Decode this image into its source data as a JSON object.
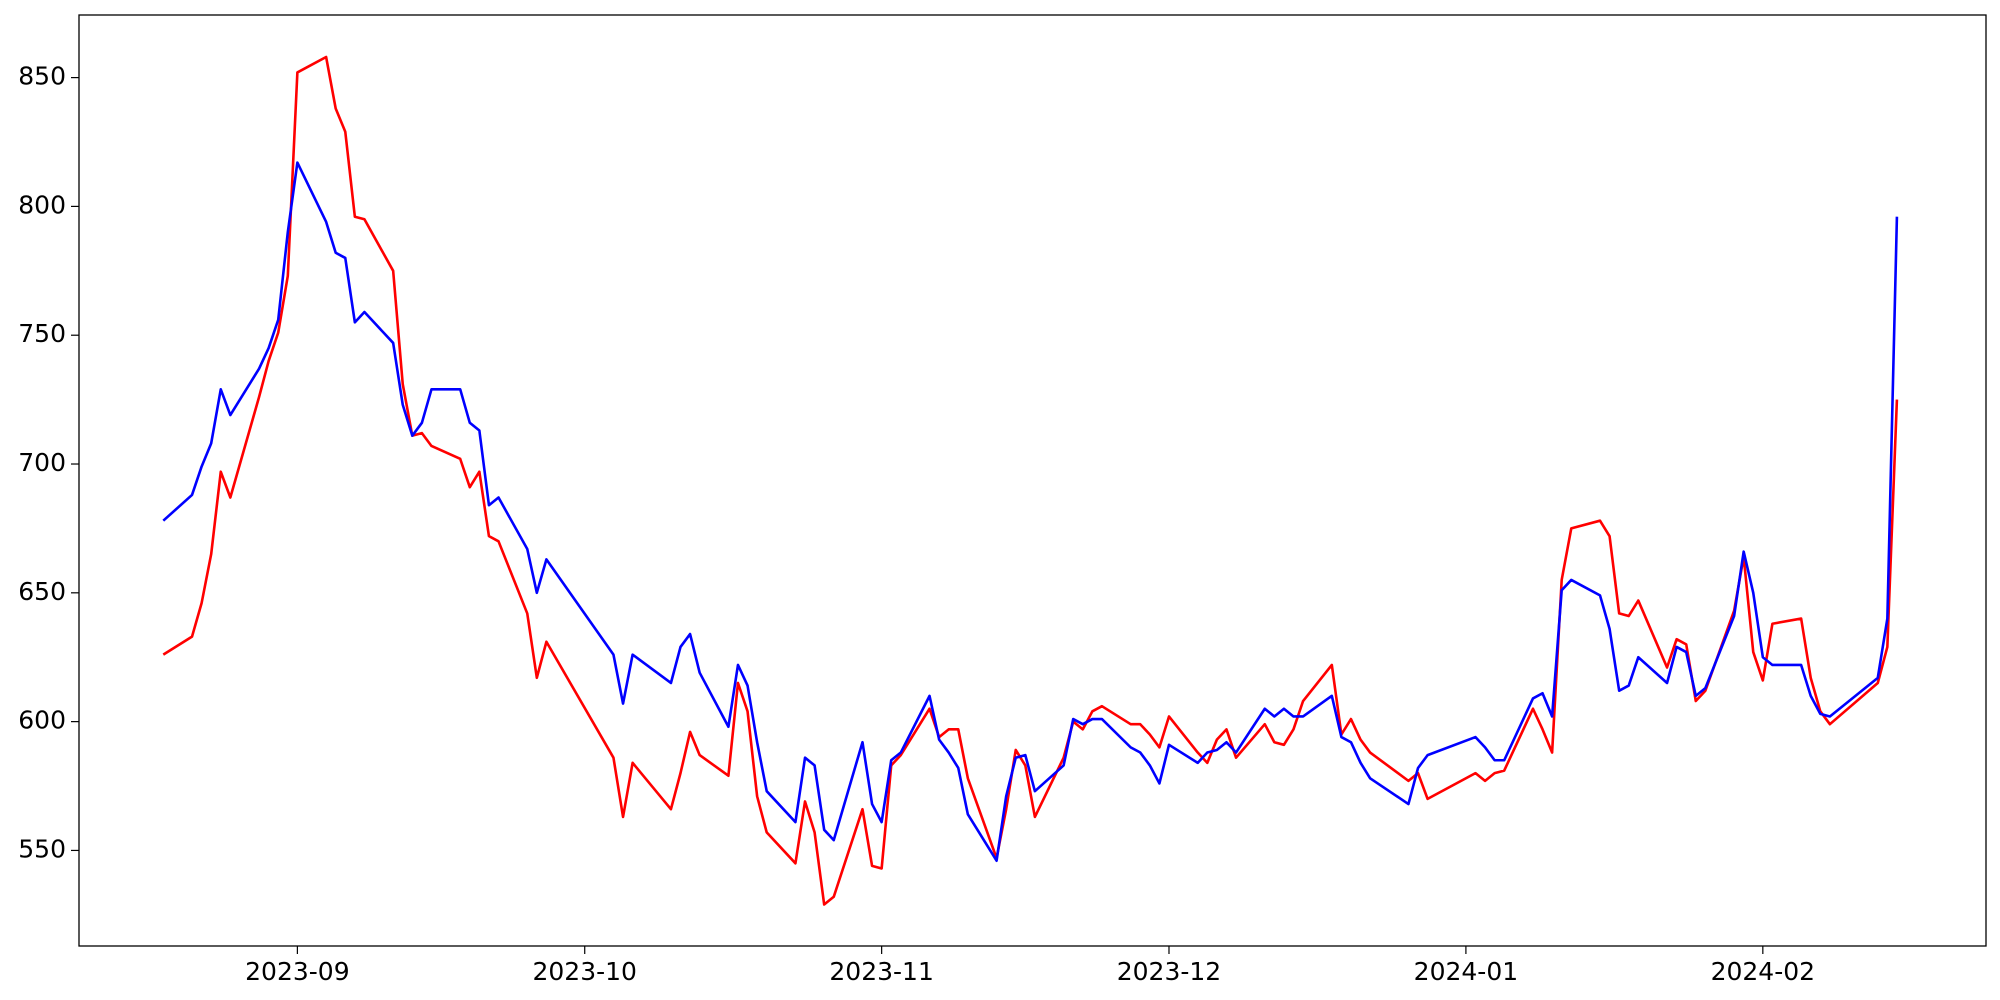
{
  "chart_data": {
    "type": "line",
    "x": [
      19587,
      19590,
      19591,
      19592,
      19593,
      19594,
      19597,
      19598,
      19599,
      19600,
      19601,
      19604,
      19605,
      19606,
      19607,
      19608,
      19611,
      19612,
      19613,
      19614,
      19615,
      19618,
      19619,
      19620,
      19621,
      19622,
      19625,
      19626,
      19627,
      19634,
      19635,
      19636,
      19640,
      19641,
      19642,
      19643,
      19646,
      19647,
      19648,
      19649,
      19650,
      19653,
      19654,
      19655,
      19656,
      19657,
      19660,
      19661,
      19662,
      19663,
      19664,
      19667,
      19668,
      19669,
      19670,
      19671,
      19674,
      19675,
      19676,
      19677,
      19678,
      19681,
      19682,
      19683,
      19684,
      19685,
      19688,
      19689,
      19690,
      19691,
      19692,
      19695,
      19696,
      19697,
      19698,
      19699,
      19702,
      19703,
      19704,
      19705,
      19706,
      19709,
      19710,
      19711,
      19712,
      19713,
      19717,
      19718,
      19719,
      19724,
      19725,
      19726,
      19727,
      19730,
      19731,
      19732,
      19733,
      19734,
      19737,
      19738,
      19739,
      19740,
      19741,
      19744,
      19745,
      19746,
      19747,
      19748,
      19751,
      19752,
      19753,
      19754,
      19755,
      19758,
      19759,
      19760,
      19761,
      19766,
      19767,
      19768
    ],
    "series": [
      {
        "color": "#ff0000",
        "values": [
          626,
          633,
          646,
          665,
          697,
          687,
          726,
          740,
          751,
          773,
          852,
          858,
          838,
          829,
          796,
          795,
          775,
          731,
          711,
          712,
          707,
          702,
          691,
          697,
          672,
          670,
          642,
          617,
          631,
          586,
          563,
          584,
          566,
          580,
          596,
          587,
          579,
          615,
          604,
          571,
          557,
          545,
          569,
          557,
          529,
          532,
          566,
          544,
          543,
          583,
          587,
          605,
          594,
          597,
          597,
          578,
          547,
          566,
          589,
          583,
          563,
          586,
          600,
          597,
          604,
          606,
          599,
          599,
          595,
          590,
          602,
          588,
          584,
          593,
          597,
          586,
          599,
          592,
          591,
          597,
          608,
          622,
          595,
          601,
          593,
          588,
          577,
          580,
          570,
          580,
          577,
          580,
          581,
          605,
          597,
          588,
          655,
          675,
          678,
          672,
          642,
          641,
          647,
          621,
          632,
          630,
          608,
          612,
          643,
          664,
          627,
          616,
          638,
          640,
          617,
          604,
          599,
          615,
          629,
          725
        ]
      },
      {
        "color": "#0000ff",
        "values": [
          678,
          688,
          699,
          708,
          729,
          719,
          737,
          745,
          756,
          790,
          817,
          794,
          782,
          780,
          755,
          759,
          747,
          723,
          711,
          716,
          729,
          729,
          716,
          713,
          684,
          687,
          667,
          650,
          663,
          626,
          607,
          626,
          615,
          629,
          634,
          619,
          598,
          622,
          614,
          592,
          573,
          561,
          586,
          583,
          558,
          554,
          592,
          568,
          561,
          585,
          588,
          610,
          593,
          588,
          582,
          564,
          546,
          571,
          586,
          587,
          573,
          583,
          601,
          599,
          601,
          601,
          590,
          588,
          583,
          576,
          591,
          584,
          588,
          589,
          592,
          588,
          605,
          602,
          605,
          602,
          602,
          610,
          594,
          592,
          584,
          578,
          568,
          582,
          587,
          594,
          590,
          585,
          585,
          609,
          611,
          602,
          651,
          655,
          649,
          636,
          612,
          614,
          625,
          615,
          629,
          627,
          610,
          613,
          641,
          666,
          650,
          625,
          622,
          622,
          610,
          603,
          602,
          617,
          640,
          796
        ]
      }
    ],
    "xlim": [
      19578.2,
      19777.3
    ],
    "xticks": [
      {
        "value": 19601,
        "label": "2023-09"
      },
      {
        "value": 19631,
        "label": "2023-10"
      },
      {
        "value": 19662,
        "label": "2023-11"
      },
      {
        "value": 19692,
        "label": "2023-12"
      },
      {
        "value": 19723,
        "label": "2024-01"
      },
      {
        "value": 19754,
        "label": "2024-02"
      }
    ],
    "ylim": [
      512.9,
      874.3
    ],
    "yticks": [
      550,
      600,
      650,
      700,
      750,
      800,
      850
    ]
  }
}
